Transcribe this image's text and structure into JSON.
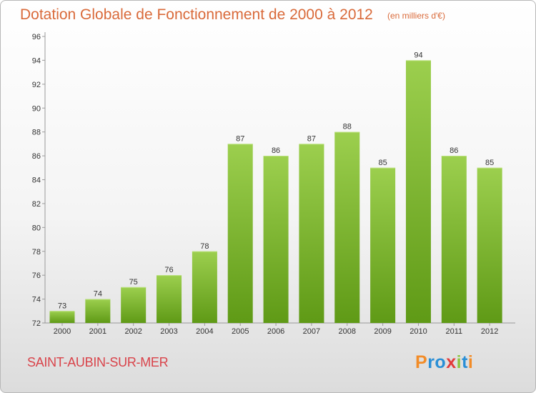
{
  "header": {
    "title": "Dotation Globale de Fonctionnement de 2000 à 2012",
    "subtitle": "(en milliers d'€)"
  },
  "footer": {
    "commune": "SAINT-AUBIN-SUR-MER",
    "logo": "Proxiti"
  },
  "chart_data": {
    "type": "bar",
    "title": "Dotation Globale de Fonctionnement de 2000 à 2012",
    "subtitle": "(en milliers d'€)",
    "xlabel": "",
    "ylabel": "",
    "categories": [
      "2000",
      "2001",
      "2002",
      "2003",
      "2004",
      "2005",
      "2006",
      "2007",
      "2008",
      "2009",
      "2010",
      "2011",
      "2012"
    ],
    "values": [
      73,
      74,
      75,
      76,
      78,
      87,
      86,
      87,
      88,
      85,
      94,
      86,
      85
    ],
    "ylim": [
      72,
      96
    ],
    "yticks": [
      72,
      74,
      76,
      78,
      80,
      82,
      84,
      86,
      88,
      90,
      92,
      94,
      96
    ],
    "grid": false,
    "bar_color_top": "#9ccf4e",
    "bar_color_bottom": "#5f9a16"
  },
  "colors": {
    "title": "#d96a3a",
    "commune": "#d9434a",
    "logo_letters": [
      "#f28c28",
      "#2a8fd6",
      "#2a8fd6",
      "#e23b3b",
      "#8cc63f",
      "#2a8fd6",
      "#f28c28"
    ]
  }
}
